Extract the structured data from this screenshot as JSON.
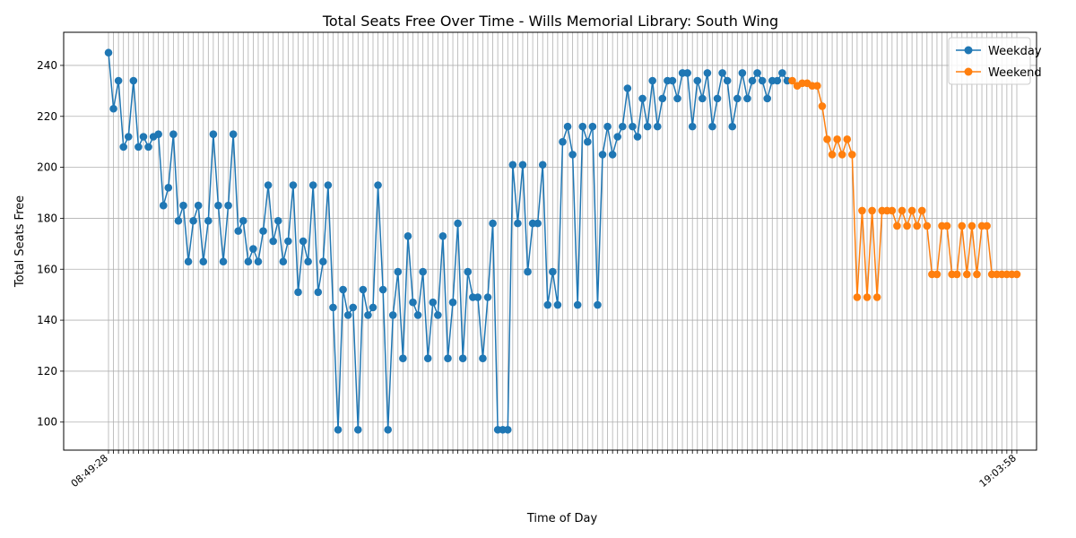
{
  "chart_data": {
    "type": "line",
    "title": "Total Seats Free Over Time - Wills Memorial Library: South Wing",
    "xlabel": "Time of Day",
    "ylabel": "Total Seats Free",
    "ylim": [
      89,
      253
    ],
    "yticks": [
      100,
      120,
      140,
      160,
      180,
      200,
      220,
      240
    ],
    "grid": true,
    "legend_position": "top-right",
    "x_tick_labels_legible": [
      "08:49:28",
      "19:03:58"
    ],
    "series": [
      {
        "name": "Weekday",
        "color": "#1f77b4",
        "values": [
          245,
          223,
          234,
          208,
          212,
          234,
          208,
          212,
          208,
          212,
          213,
          185,
          192,
          213,
          179,
          185,
          163,
          179,
          185,
          163,
          179,
          213,
          185,
          163,
          185,
          213,
          175,
          179,
          163,
          168,
          163,
          175,
          193,
          171,
          179,
          163,
          171,
          193,
          151,
          171,
          163,
          193,
          151,
          163,
          193,
          145,
          97,
          152,
          142,
          145,
          97,
          152,
          142,
          145,
          193,
          152,
          97,
          142,
          159,
          125,
          173,
          147,
          142,
          159,
          125,
          147,
          142,
          173,
          125,
          147,
          178,
          125,
          159,
          149,
          149,
          125,
          149,
          178,
          97,
          97,
          97,
          201,
          178,
          201,
          159,
          178,
          178,
          201,
          146,
          159,
          146,
          210,
          216,
          205,
          146,
          216,
          210,
          216,
          146,
          205,
          216,
          205,
          212,
          216,
          231,
          216,
          212,
          227,
          216,
          234,
          216,
          227,
          234,
          234,
          227,
          237,
          237,
          216,
          234,
          227,
          237,
          216,
          227,
          237,
          234,
          216,
          227,
          237,
          227,
          234,
          237,
          234,
          227,
          234,
          234,
          237,
          234
        ]
      },
      {
        "name": "Weekend",
        "color": "#ff7f0e",
        "values": [
          234,
          232,
          233,
          233,
          232,
          232,
          224,
          211,
          205,
          211,
          205,
          211,
          205,
          149,
          183,
          149,
          183,
          149,
          183,
          183,
          183,
          177,
          183,
          177,
          183,
          177,
          183,
          177,
          158,
          158,
          177,
          177,
          158,
          158,
          177,
          158,
          177,
          158,
          177,
          177,
          158,
          158,
          158,
          158,
          158,
          158
        ]
      }
    ]
  }
}
